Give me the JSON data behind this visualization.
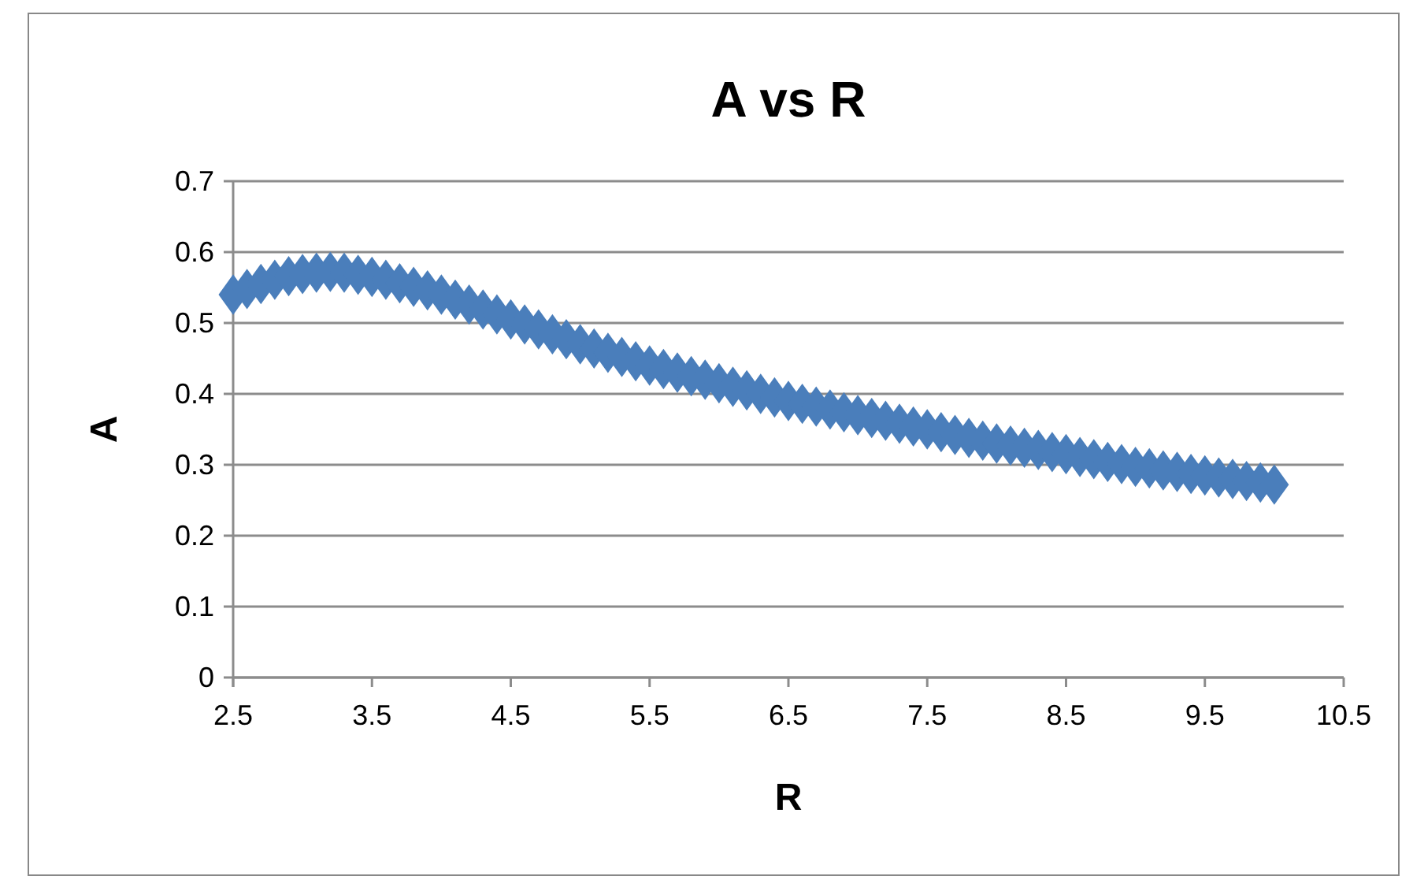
{
  "chart_data": {
    "type": "scatter",
    "title": "A vs R",
    "xlabel": "R",
    "ylabel": "A",
    "x": [
      2.5,
      2.6,
      2.7,
      2.8,
      2.9,
      3.0,
      3.1,
      3.2,
      3.3,
      3.4,
      3.5,
      3.6,
      3.7,
      3.8,
      3.9,
      4.0,
      4.1,
      4.2,
      4.3,
      4.4,
      4.5,
      4.6,
      4.7,
      4.8,
      4.9,
      5.0,
      5.1,
      5.2,
      5.3,
      5.4,
      5.5,
      5.6,
      5.7,
      5.8,
      5.9,
      6.0,
      6.1,
      6.2,
      6.3,
      6.4,
      6.5,
      6.6,
      6.7,
      6.8,
      6.9,
      7.0,
      7.1,
      7.2,
      7.3,
      7.4,
      7.5,
      7.6,
      7.7,
      7.8,
      7.9,
      8.0,
      8.1,
      8.2,
      8.3,
      8.4,
      8.5,
      8.6,
      8.7,
      8.8,
      8.9,
      9.0,
      9.1,
      9.2,
      9.3,
      9.4,
      9.5,
      9.6,
      9.7,
      9.8,
      9.9,
      10.0
    ],
    "series": [
      {
        "color": "#4a7ebb",
        "values": [
          0.54,
          0.548,
          0.555,
          0.561,
          0.566,
          0.569,
          0.571,
          0.572,
          0.571,
          0.568,
          0.565,
          0.561,
          0.556,
          0.551,
          0.546,
          0.54,
          0.533,
          0.526,
          0.519,
          0.512,
          0.505,
          0.498,
          0.491,
          0.484,
          0.477,
          0.47,
          0.464,
          0.458,
          0.452,
          0.446,
          0.44,
          0.435,
          0.43,
          0.425,
          0.42,
          0.415,
          0.41,
          0.405,
          0.4,
          0.395,
          0.39,
          0.386,
          0.382,
          0.378,
          0.374,
          0.37,
          0.366,
          0.362,
          0.358,
          0.354,
          0.35,
          0.346,
          0.342,
          0.338,
          0.334,
          0.33,
          0.327,
          0.324,
          0.321,
          0.318,
          0.315,
          0.311,
          0.308,
          0.304,
          0.301,
          0.297,
          0.295,
          0.292,
          0.29,
          0.287,
          0.285,
          0.282,
          0.28,
          0.277,
          0.275,
          0.272
        ]
      }
    ],
    "xlim": [
      2.5,
      10.5
    ],
    "xticks": [
      2.5,
      3.5,
      4.5,
      5.5,
      6.5,
      7.5,
      8.5,
      9.5,
      10.5
    ],
    "ylim": [
      0,
      0.7
    ],
    "yticks": [
      0,
      0.1,
      0.2,
      0.3,
      0.4,
      0.5,
      0.6,
      0.7
    ],
    "grid": "y",
    "marker": "diamond"
  }
}
